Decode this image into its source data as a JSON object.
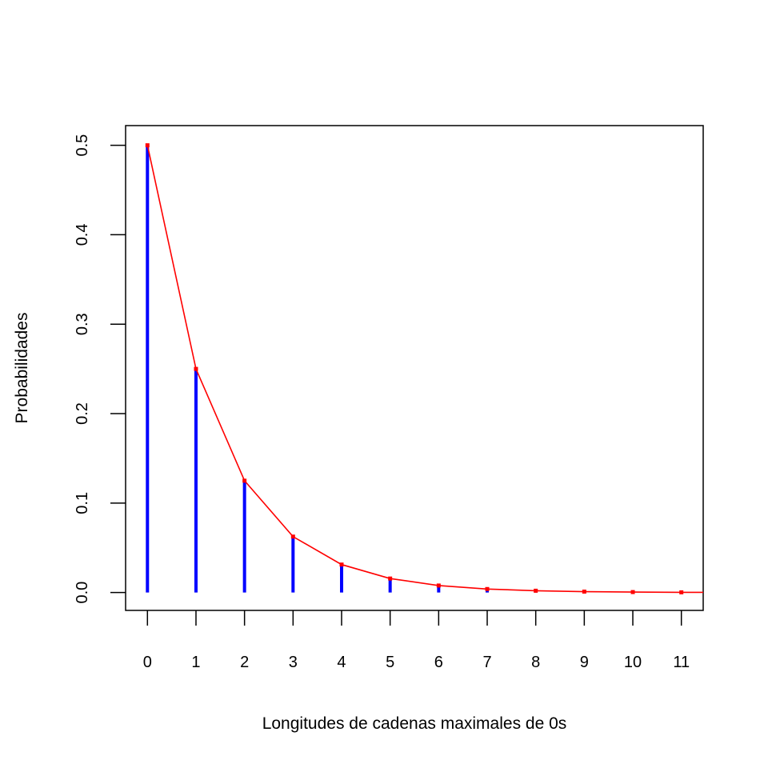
{
  "chart_data": {
    "type": "bar",
    "xlabel": "Longitudes de cadenas maximales de 0s",
    "ylabel": "Probabilidades",
    "x": [
      0,
      1,
      2,
      3,
      4,
      5,
      6,
      7,
      8,
      9,
      10,
      11
    ],
    "series": [
      {
        "type": "bar",
        "color": "#0000ff",
        "values": [
          0.5,
          0.25,
          0.125,
          0.0625,
          0.03125,
          0.015625,
          0.0078,
          0.0039,
          0.002,
          0.001,
          0.0005,
          0.0002
        ]
      },
      {
        "type": "line",
        "color": "#ff0000",
        "values": [
          0.5,
          0.25,
          0.125,
          0.0625,
          0.03125,
          0.015625,
          0.0078,
          0.0039,
          0.002,
          0.001,
          0.0005,
          0.0002
        ]
      }
    ],
    "xticks": [
      "0",
      "1",
      "2",
      "3",
      "4",
      "5",
      "6",
      "7",
      "8",
      "9",
      "10",
      "11"
    ],
    "yticks": [
      "0.0",
      "0.1",
      "0.2",
      "0.3",
      "0.4",
      "0.5"
    ],
    "xlim": [
      -0.45,
      11.45
    ],
    "ylim": [
      -0.02,
      0.522
    ],
    "grid": false,
    "legend": "none"
  }
}
